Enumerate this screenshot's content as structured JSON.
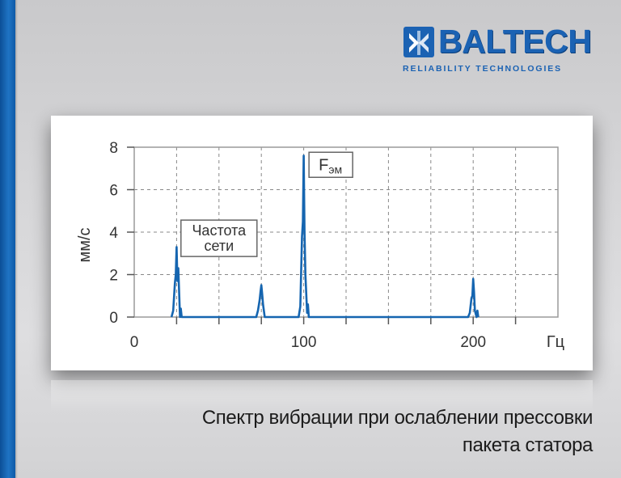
{
  "logo": {
    "name": "BALTECH",
    "tagline": "RELIABILITY   TECHNOLOGIES"
  },
  "colors": {
    "brand_blue": "#1b62b3",
    "series_blue": "#1565b0",
    "grid": "#8a8a8a"
  },
  "chart_data": {
    "type": "line",
    "xlabel": "Гц",
    "ylabel": "мм/с",
    "xlim": [
      0,
      250
    ],
    "ylim": [
      0,
      8
    ],
    "x_ticks": [
      0,
      100,
      200
    ],
    "y_ticks": [
      0,
      2,
      4,
      6,
      8
    ],
    "grid": true,
    "series": [
      {
        "x": [
          22,
          23,
          24,
          24.5,
          25,
          25.5,
          26,
          27,
          27.5,
          28,
          72,
          73,
          74,
          74.5,
          75,
          75.5,
          76,
          77,
          77.5,
          78,
          97,
          98,
          99,
          99.5,
          100,
          100.5,
          101,
          102,
          102.5,
          103,
          197,
          198,
          199,
          199.5,
          200,
          200.5,
          201,
          202,
          202.5,
          203
        ],
        "y": [
          0,
          0.3,
          1.6,
          2.0,
          3.3,
          1.7,
          2.3,
          0,
          0.4,
          0,
          0,
          0.3,
          0.8,
          1.2,
          1.5,
          1.1,
          0.6,
          0,
          0,
          0,
          0,
          0.5,
          3.8,
          4.5,
          7.6,
          4.0,
          2.0,
          0.2,
          0.6,
          0,
          0,
          0.2,
          0.9,
          1.0,
          1.8,
          1.2,
          0.3,
          0,
          0.3,
          0
        ]
      }
    ],
    "annotations": [
      {
        "lines": [
          "Частота",
          "сети"
        ],
        "x": 50,
        "y": 3.5
      },
      {
        "main": "F",
        "sub": "эм",
        "x": 116,
        "y": 7.0
      }
    ]
  },
  "caption": {
    "line1": "Спектр вибрации при ослаблении прессовки",
    "line2": "пакета статора"
  }
}
